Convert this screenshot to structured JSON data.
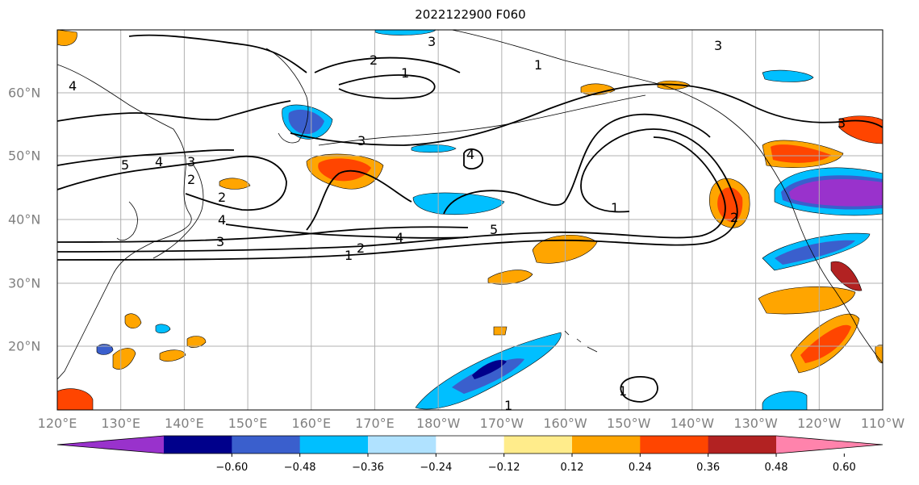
{
  "title": "2022122900 F060",
  "lon_labels": [
    "120°E",
    "130°E",
    "140°E",
    "150°E",
    "160°E",
    "170°E",
    "180°W",
    "170°W",
    "160°W",
    "150°W",
    "140°W",
    "130°W",
    "120°W",
    "110°W"
  ],
  "lat_labels": [
    "60°N",
    "50°N",
    "40°N",
    "30°N",
    "20°N"
  ],
  "colorbar": {
    "colors": [
      "#9932cc",
      "#00008b",
      "#3a5fcd",
      "#00bfff",
      "#b0e2ff",
      "#ffffff",
      "#ffec8b",
      "#ffa500",
      "#ff4500",
      "#b22222",
      "#ff83ac"
    ],
    "tick_labels": [
      "−0.60",
      "−0.48",
      "−0.36",
      "−0.24",
      "−0.12",
      "0.12",
      "0.24",
      "0.36",
      "0.48",
      "0.60"
    ]
  },
  "contour_labels": [
    "3",
    "2",
    "1",
    "3",
    "4",
    "5",
    "4",
    "3",
    "2",
    "4",
    "3",
    "2",
    "1",
    "4",
    "5",
    "1",
    "1",
    "3",
    "2",
    "1",
    "3",
    "4",
    "2",
    "1"
  ]
}
